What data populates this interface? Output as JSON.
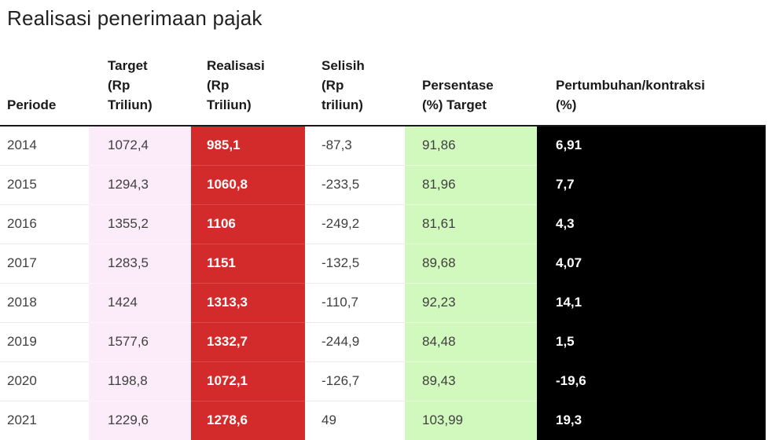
{
  "title": "Realisasi penerimaan pajak",
  "colors": {
    "target_column_bg": "#fcecf9",
    "realisasi_column_bg": "#d32b2b",
    "realisasi_text": "#ffffff",
    "persentase_column_bg": "#d2f9bd",
    "pertumbuhan_column_bg": "#000000",
    "pertumbuhan_text": "#ffffff",
    "header_rule": "#1a1a1a",
    "row_rule": "#ebebeb",
    "body_text": "#404040",
    "title_text": "#222222"
  },
  "table": {
    "columns": [
      {
        "key": "periode",
        "label": "Periode",
        "label_lines": [
          "Periode"
        ]
      },
      {
        "key": "target",
        "label": "Target (Rp Triliun)",
        "label_lines": [
          "Target",
          "(Rp",
          "Triliun)"
        ]
      },
      {
        "key": "realisasi",
        "label": "Realisasi (Rp Triliun)",
        "label_lines": [
          "Realisasi",
          "(Rp",
          "Triliun)"
        ]
      },
      {
        "key": "selisih",
        "label": "Selisih (Rp triliun)",
        "label_lines": [
          "Selisih",
          "(Rp",
          "triliun)"
        ]
      },
      {
        "key": "persentase",
        "label": "Persentase (%) Target",
        "label_lines": [
          "Persentase",
          "(%) Target"
        ]
      },
      {
        "key": "pertumbuhan",
        "label": "Pertumbuhan/kontraksi (%)",
        "label_lines": [
          "Pertumbuhan/kontraksi",
          "(%)"
        ]
      }
    ]
  },
  "chart_data": {
    "type": "table",
    "title": "Realisasi penerimaan pajak",
    "columns": [
      "Periode",
      "Target (Rp Triliun)",
      "Realisasi (Rp Triliun)",
      "Selisih (Rp triliun)",
      "Persentase (%) Target",
      "Pertumbuhan/kontraksi (%)"
    ],
    "rows": [
      [
        "2014",
        "1072,4",
        "985,1",
        "-87,3",
        "91,86",
        "6,91"
      ],
      [
        "2015",
        "1294,3",
        "1060,8",
        "-233,5",
        "81,96",
        "7,7"
      ],
      [
        "2016",
        "1355,2",
        "1106",
        "-249,2",
        "81,61",
        "4,3"
      ],
      [
        "2017",
        "1283,5",
        "1151",
        "-132,5",
        "89,68",
        "4,07"
      ],
      [
        "2018",
        "1424",
        "1313,3",
        "-110,7",
        "92,23",
        "14,1"
      ],
      [
        "2019",
        "1577,6",
        "1332,7",
        "-244,9",
        "84,48",
        "1,5"
      ],
      [
        "2020",
        "1198,8",
        "1072,1",
        "-126,7",
        "89,43",
        "-19,6"
      ],
      [
        "2021",
        "1229,6",
        "1278,6",
        "49",
        "103,99",
        "19,3"
      ]
    ]
  }
}
